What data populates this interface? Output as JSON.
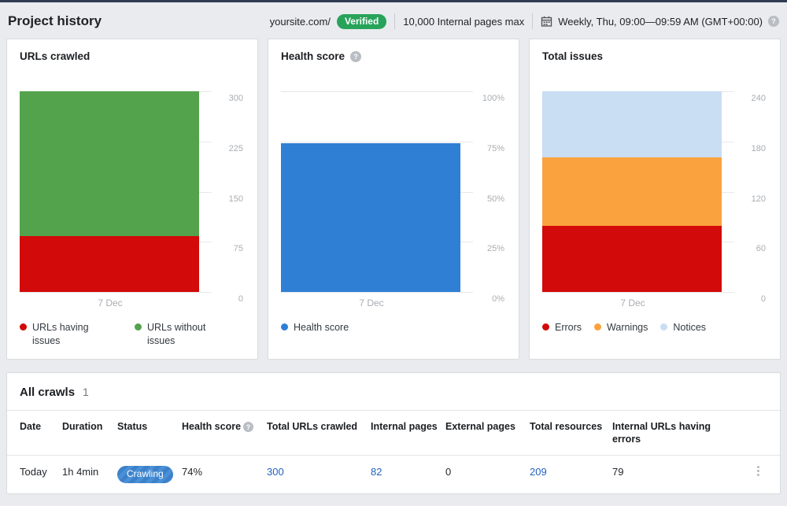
{
  "header": {
    "title": "Project history",
    "site": "yoursite.com/",
    "verified_label": "Verified",
    "pages_max": "10,000 Internal pages max",
    "schedule": "Weekly, Thu, 09:00—09:59 AM (GMT+00:00)",
    "help_glyph": "?"
  },
  "colors": {
    "accent_blue": "#2f80d5",
    "link_blue": "#2161be",
    "error_red": "#d20a0a",
    "ok_green": "#53a34c",
    "warning_orange": "#faa23d",
    "notice_lightblue": "#c9ddf3",
    "verified_green": "#27a35a",
    "top_border_navy": "#303c52"
  },
  "chart_data": [
    {
      "type": "bar",
      "stacked": true,
      "title": "URLs crawled",
      "categories": [
        "7 Dec"
      ],
      "ymax": 300,
      "grid": true,
      "legend_position": "bottom",
      "yticks": [
        {
          "label": "300",
          "value": 300
        },
        {
          "label": "225",
          "value": 225
        },
        {
          "label": "150",
          "value": 150
        },
        {
          "label": "75",
          "value": 75
        },
        {
          "label": "0",
          "value": 0
        }
      ],
      "series": [
        {
          "name": "URLs having issues",
          "color": "#d20a0a",
          "values": [
            84
          ]
        },
        {
          "name": "URLs without issues",
          "color": "#53a34c",
          "values": [
            216
          ]
        }
      ]
    },
    {
      "type": "bar",
      "stacked": false,
      "title": "Health score",
      "has_help": true,
      "categories": [
        "7 Dec"
      ],
      "ymax": 100,
      "grid": true,
      "legend_position": "bottom",
      "yticks": [
        {
          "label": "100%",
          "value": 100
        },
        {
          "label": "75%",
          "value": 75
        },
        {
          "label": "50%",
          "value": 50
        },
        {
          "label": "25%",
          "value": 25
        },
        {
          "label": "0%",
          "value": 0
        }
      ],
      "series": [
        {
          "name": "Health score",
          "color": "#2f80d5",
          "values": [
            74
          ]
        }
      ]
    },
    {
      "type": "bar",
      "stacked": true,
      "title": "Total issues",
      "categories": [
        "7 Dec"
      ],
      "ymax": 240,
      "grid": true,
      "legend_position": "bottom",
      "yticks": [
        {
          "label": "240",
          "value": 240
        },
        {
          "label": "180",
          "value": 180
        },
        {
          "label": "120",
          "value": 120
        },
        {
          "label": "60",
          "value": 60
        },
        {
          "label": "0",
          "value": 0
        }
      ],
      "series": [
        {
          "name": "Errors",
          "color": "#d20a0a",
          "values": [
            79
          ]
        },
        {
          "name": "Warnings",
          "color": "#faa23d",
          "values": [
            82
          ]
        },
        {
          "name": "Notices",
          "color": "#c9ddf3",
          "values": [
            79
          ]
        }
      ]
    }
  ],
  "table": {
    "title": "All crawls",
    "count": "1",
    "columns": [
      "Date",
      "Duration",
      "Status",
      "Health score",
      "Total URLs crawled",
      "Internal pages",
      "External pages",
      "Total resources",
      "Internal URLs having errors"
    ],
    "rows": [
      {
        "date": "Today",
        "duration": "1h 4min",
        "status": "Crawling",
        "health_score": "74%",
        "total_urls_crawled": "300",
        "internal_pages": "82",
        "external_pages": "0",
        "total_resources": "209",
        "internal_urls_errors": "79"
      }
    ]
  }
}
